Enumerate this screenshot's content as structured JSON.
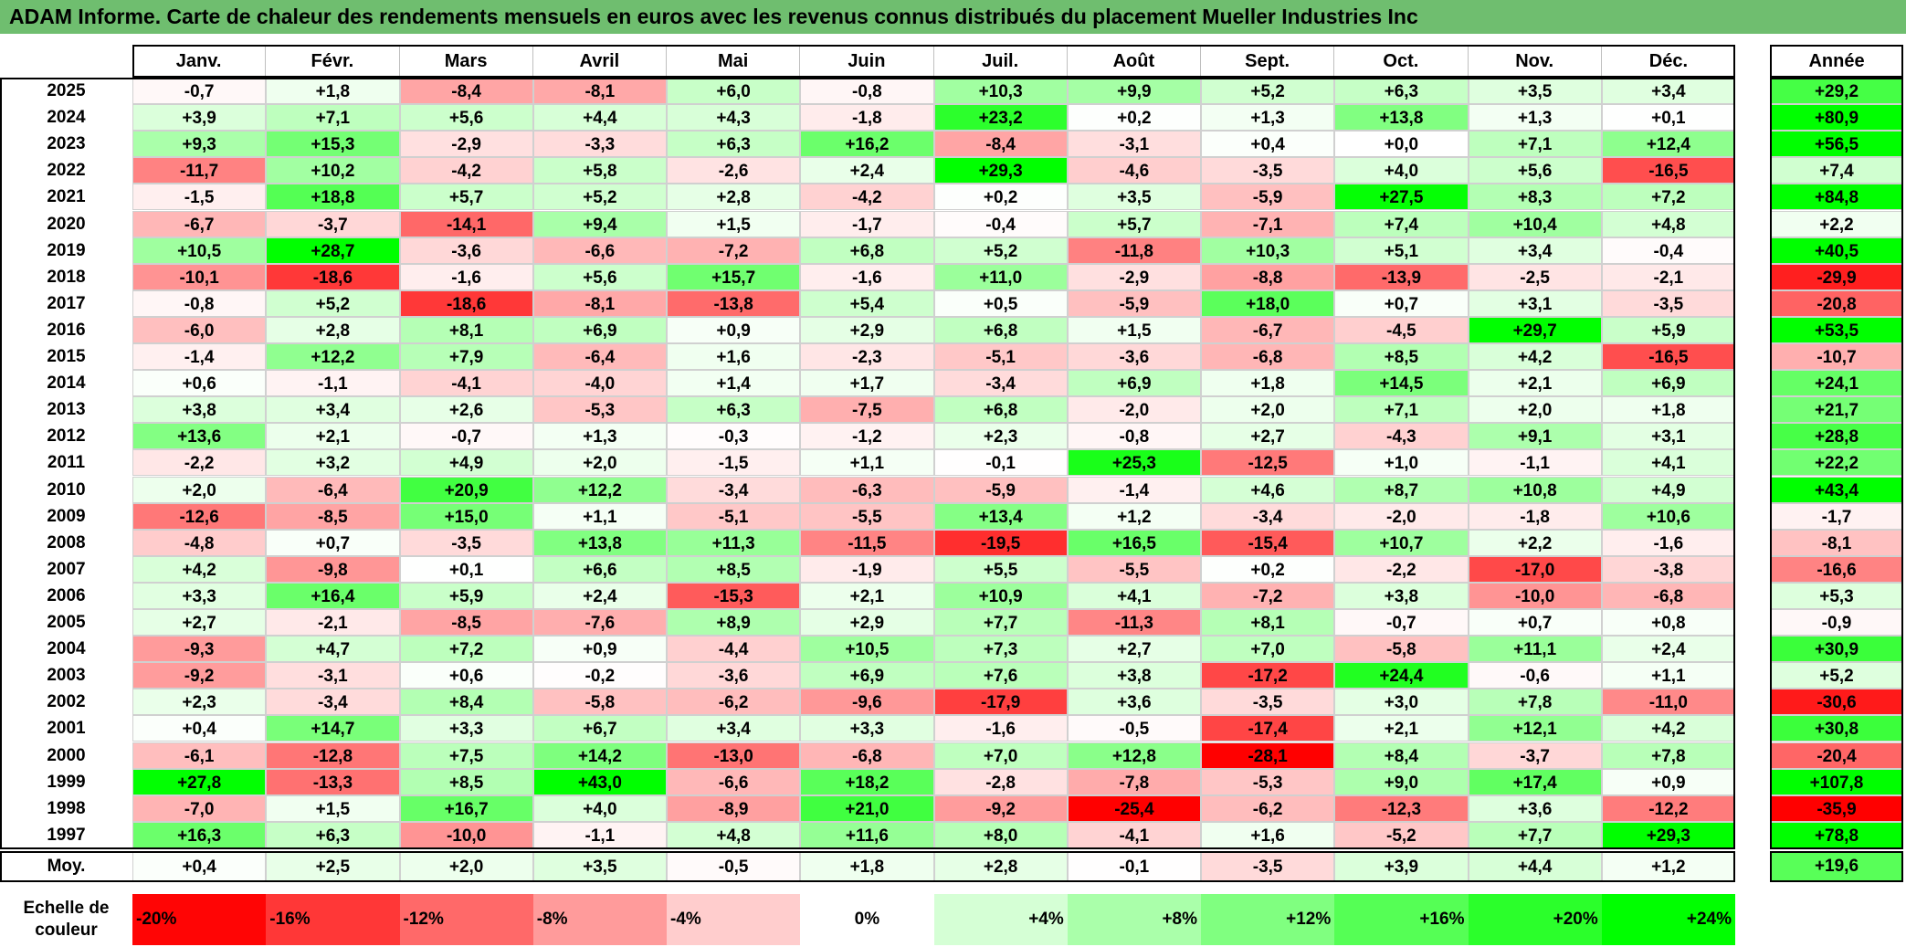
{
  "title": "ADAM Informe. Carte de chaleur des rendements mensuels en euros avec les revenus connus distribués du placement Mueller Industries Inc",
  "chart_data": {
    "type": "heatmap",
    "title": "ADAM Informe. Carte de chaleur des rendements mensuels en euros avec les revenus connus distribués du placement Mueller Industries Inc",
    "columns": [
      "Janv.",
      "Févr.",
      "Mars",
      "Avril",
      "Mai",
      "Juin",
      "Juil.",
      "Août",
      "Sept.",
      "Oct.",
      "Nov.",
      "Déc."
    ],
    "year_column": "Année",
    "rows": [
      {
        "year": "2025",
        "values": [
          "-0,7",
          "+1,8",
          "-8,4",
          "-8,1",
          "+6,0",
          "-0,8",
          "+10,3",
          "+9,9",
          "+5,2",
          "+6,3",
          "+3,5",
          "+3,4"
        ],
        "annual": "+29,2"
      },
      {
        "year": "2024",
        "values": [
          "+3,9",
          "+7,1",
          "+5,6",
          "+4,4",
          "+4,3",
          "-1,8",
          "+23,2",
          "+0,2",
          "+1,3",
          "+13,8",
          "+1,3",
          "+0,1"
        ],
        "annual": "+80,9"
      },
      {
        "year": "2023",
        "values": [
          "+9,3",
          "+15,3",
          "-2,9",
          "-3,3",
          "+6,3",
          "+16,2",
          "-8,4",
          "-3,1",
          "+0,4",
          "+0,0",
          "+7,1",
          "+12,4"
        ],
        "annual": "+56,5"
      },
      {
        "year": "2022",
        "values": [
          "-11,7",
          "+10,2",
          "-4,2",
          "+5,8",
          "-2,6",
          "+2,4",
          "+29,3",
          "-4,6",
          "-3,5",
          "+4,0",
          "+5,6",
          "-16,5"
        ],
        "annual": "+7,4"
      },
      {
        "year": "2021",
        "values": [
          "-1,5",
          "+18,8",
          "+5,7",
          "+5,2",
          "+2,8",
          "-4,2",
          "+0,2",
          "+3,5",
          "-5,9",
          "+27,5",
          "+8,3",
          "+7,2"
        ],
        "annual": "+84,8"
      },
      {
        "year": "2020",
        "values": [
          "-6,7",
          "-3,7",
          "-14,1",
          "+9,4",
          "+1,5",
          "-1,7",
          "-0,4",
          "+5,7",
          "-7,1",
          "+7,4",
          "+10,4",
          "+4,8"
        ],
        "annual": "+2,2"
      },
      {
        "year": "2019",
        "values": [
          "+10,5",
          "+28,7",
          "-3,6",
          "-6,6",
          "-7,2",
          "+6,8",
          "+5,2",
          "-11,8",
          "+10,3",
          "+5,1",
          "+3,4",
          "-0,4"
        ],
        "annual": "+40,5"
      },
      {
        "year": "2018",
        "values": [
          "-10,1",
          "-18,6",
          "-1,6",
          "+5,6",
          "+15,7",
          "-1,6",
          "+11,0",
          "-2,9",
          "-8,8",
          "-13,9",
          "-2,5",
          "-2,1"
        ],
        "annual": "-29,9"
      },
      {
        "year": "2017",
        "values": [
          "-0,8",
          "+5,2",
          "-18,6",
          "-8,1",
          "-13,8",
          "+5,4",
          "+0,5",
          "-5,9",
          "+18,0",
          "+0,7",
          "+3,1",
          "-3,5"
        ],
        "annual": "-20,8"
      },
      {
        "year": "2016",
        "values": [
          "-6,0",
          "+2,8",
          "+8,1",
          "+6,9",
          "+0,9",
          "+2,9",
          "+6,8",
          "+1,5",
          "-6,7",
          "-4,5",
          "+29,7",
          "+5,9"
        ],
        "annual": "+53,5"
      },
      {
        "year": "2015",
        "values": [
          "-1,4",
          "+12,2",
          "+7,9",
          "-6,4",
          "+1,6",
          "-2,3",
          "-5,1",
          "-3,6",
          "-6,8",
          "+8,5",
          "+4,2",
          "-16,5"
        ],
        "annual": "-10,7"
      },
      {
        "year": "2014",
        "values": [
          "+0,6",
          "-1,1",
          "-4,1",
          "-4,0",
          "+1,4",
          "+1,7",
          "-3,4",
          "+6,9",
          "+1,8",
          "+14,5",
          "+2,1",
          "+6,9"
        ],
        "annual": "+24,1"
      },
      {
        "year": "2013",
        "values": [
          "+3,8",
          "+3,4",
          "+2,6",
          "-5,3",
          "+6,3",
          "-7,5",
          "+6,8",
          "-2,0",
          "+2,0",
          "+7,1",
          "+2,0",
          "+1,8"
        ],
        "annual": "+21,7"
      },
      {
        "year": "2012",
        "values": [
          "+13,6",
          "+2,1",
          "-0,7",
          "+1,3",
          "-0,3",
          "-1,2",
          "+2,3",
          "-0,8",
          "+2,7",
          "-4,3",
          "+9,1",
          "+3,1"
        ],
        "annual": "+28,8"
      },
      {
        "year": "2011",
        "values": [
          "-2,2",
          "+3,2",
          "+4,9",
          "+2,0",
          "-1,5",
          "+1,1",
          "-0,1",
          "+25,3",
          "-12,5",
          "+1,0",
          "-1,1",
          "+4,1"
        ],
        "annual": "+22,2"
      },
      {
        "year": "2010",
        "values": [
          "+2,0",
          "-6,4",
          "+20,9",
          "+12,2",
          "-3,4",
          "-6,3",
          "-5,9",
          "-1,4",
          "+4,6",
          "+8,7",
          "+10,8",
          "+4,9"
        ],
        "annual": "+43,4"
      },
      {
        "year": "2009",
        "values": [
          "-12,6",
          "-8,5",
          "+15,0",
          "+1,1",
          "-5,1",
          "-5,5",
          "+13,4",
          "+1,2",
          "-3,4",
          "-2,0",
          "-1,8",
          "+10,6"
        ],
        "annual": "-1,7"
      },
      {
        "year": "2008",
        "values": [
          "-4,8",
          "+0,7",
          "-3,5",
          "+13,8",
          "+11,3",
          "-11,5",
          "-19,5",
          "+16,5",
          "-15,4",
          "+10,7",
          "+2,2",
          "-1,6"
        ],
        "annual": "-8,1"
      },
      {
        "year": "2007",
        "values": [
          "+4,2",
          "-9,8",
          "+0,1",
          "+6,6",
          "+8,5",
          "-1,9",
          "+5,5",
          "-5,5",
          "+0,2",
          "-2,2",
          "-17,0",
          "-3,8"
        ],
        "annual": "-16,6"
      },
      {
        "year": "2006",
        "values": [
          "+3,3",
          "+16,4",
          "+5,9",
          "+2,4",
          "-15,3",
          "+2,1",
          "+10,9",
          "+4,1",
          "-7,2",
          "+3,8",
          "-10,0",
          "-6,8"
        ],
        "annual": "+5,3"
      },
      {
        "year": "2005",
        "values": [
          "+2,7",
          "-2,1",
          "-8,5",
          "-7,6",
          "+8,9",
          "+2,9",
          "+7,7",
          "-11,3",
          "+8,1",
          "-0,7",
          "+0,7",
          "+0,8"
        ],
        "annual": "-0,9"
      },
      {
        "year": "2004",
        "values": [
          "-9,3",
          "+4,7",
          "+7,2",
          "+0,9",
          "-4,4",
          "+10,5",
          "+7,3",
          "+2,7",
          "+7,0",
          "-5,8",
          "+11,1",
          "+2,4"
        ],
        "annual": "+30,9"
      },
      {
        "year": "2003",
        "values": [
          "-9,2",
          "-3,1",
          "+0,6",
          "-0,2",
          "-3,6",
          "+6,9",
          "+7,6",
          "+3,8",
          "-17,2",
          "+24,4",
          "-0,6",
          "+1,1"
        ],
        "annual": "+5,2"
      },
      {
        "year": "2002",
        "values": [
          "+2,3",
          "-3,4",
          "+8,4",
          "-5,8",
          "-6,2",
          "-9,6",
          "-17,9",
          "+3,6",
          "-3,5",
          "+3,0",
          "+7,8",
          "-11,0"
        ],
        "annual": "-30,6"
      },
      {
        "year": "2001",
        "values": [
          "+0,4",
          "+14,7",
          "+3,3",
          "+6,7",
          "+3,4",
          "+3,3",
          "-1,6",
          "-0,5",
          "-17,4",
          "+2,1",
          "+12,1",
          "+4,2"
        ],
        "annual": "+30,8"
      },
      {
        "year": "2000",
        "values": [
          "-6,1",
          "-12,8",
          "+7,5",
          "+14,2",
          "-13,0",
          "-6,8",
          "+7,0",
          "+12,8",
          "-28,1",
          "+8,4",
          "-3,7",
          "+7,8"
        ],
        "annual": "-20,4"
      },
      {
        "year": "1999",
        "values": [
          "+27,8",
          "-13,3",
          "+8,5",
          "+43,0",
          "-6,6",
          "+18,2",
          "-2,8",
          "-7,8",
          "-5,3",
          "+9,0",
          "+17,4",
          "+0,9"
        ],
        "annual": "+107,8"
      },
      {
        "year": "1998",
        "values": [
          "-7,0",
          "+1,5",
          "+16,7",
          "+4,0",
          "-8,9",
          "+21,0",
          "-9,2",
          "-25,4",
          "-6,2",
          "-12,3",
          "+3,6",
          "-12,2"
        ],
        "annual": "-35,9"
      },
      {
        "year": "1997",
        "values": [
          "+16,3",
          "+6,3",
          "-10,0",
          "-1,1",
          "+4,8",
          "+11,6",
          "+8,0",
          "-4,1",
          "+1,6",
          "-5,2",
          "+7,7",
          "+29,3"
        ],
        "annual": "+78,8"
      }
    ],
    "average": {
      "label": "Moy.",
      "values": [
        "+0,4",
        "+2,5",
        "+2,0",
        "+3,5",
        "-0,5",
        "+1,8",
        "+2,8",
        "-0,1",
        "-3,5",
        "+3,9",
        "+4,4",
        "+1,2"
      ],
      "annual": "+19,6"
    },
    "color_scale": {
      "label": "Echelle de couleur",
      "stops": [
        "-20%",
        "-16%",
        "-12%",
        "-8%",
        "-4%",
        "0%",
        "+4%",
        "+8%",
        "+12%",
        "+16%",
        "+20%",
        "+24%"
      ],
      "stop_values": [
        -20,
        -16,
        -12,
        -8,
        -4,
        0,
        4,
        8,
        12,
        16,
        20,
        24
      ],
      "negative_color": "#ff0000",
      "positive_color": "#00ff00",
      "neutral_color": "#ffffff"
    }
  }
}
